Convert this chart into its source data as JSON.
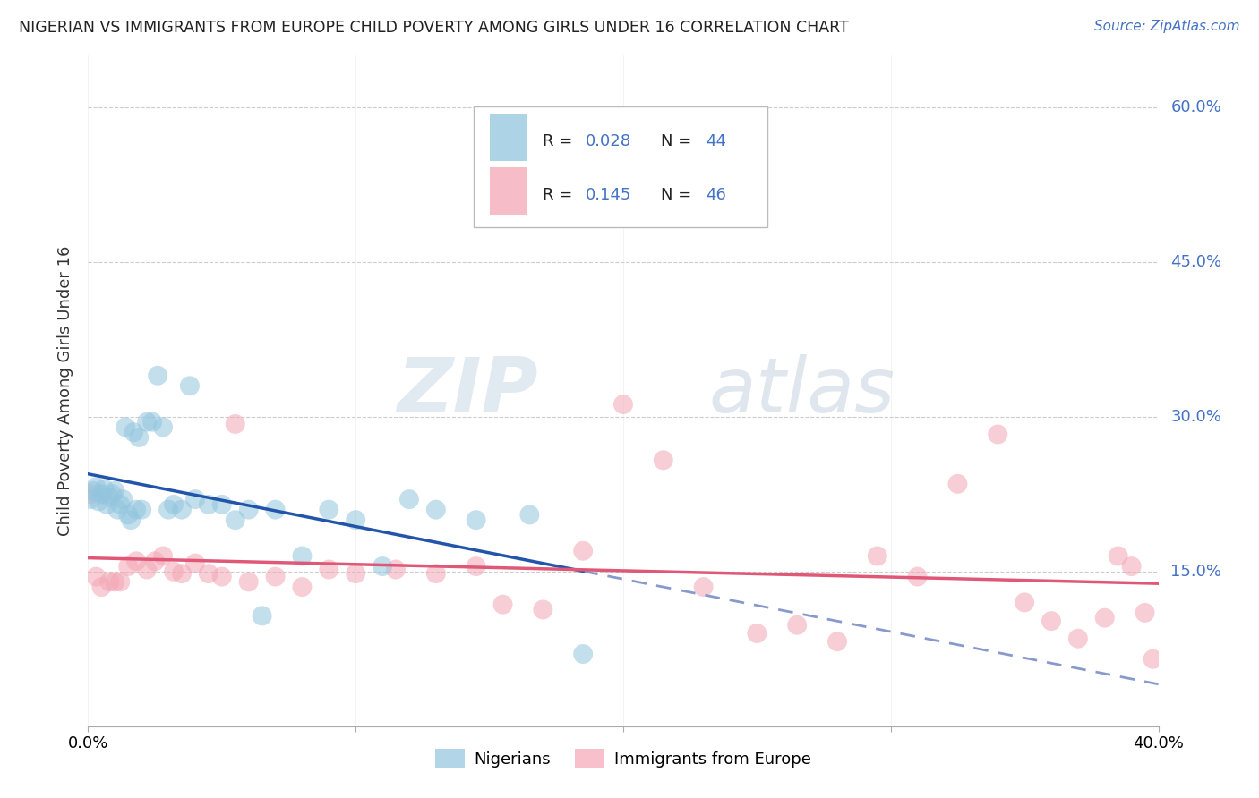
{
  "title": "NIGERIAN VS IMMIGRANTS FROM EUROPE CHILD POVERTY AMONG GIRLS UNDER 16 CORRELATION CHART",
  "source": "Source: ZipAtlas.com",
  "ylabel": "Child Poverty Among Girls Under 16",
  "ytick_labels": [
    "15.0%",
    "30.0%",
    "45.0%",
    "60.0%"
  ],
  "ytick_values": [
    0.15,
    0.3,
    0.45,
    0.6
  ],
  "xmin": 0.0,
  "xmax": 0.4,
  "ymin": 0.0,
  "ymax": 0.65,
  "blue_color": "#92c5de",
  "pink_color": "#f4a6b5",
  "line_blue": "#2255aa",
  "line_pink": "#e05878",
  "line_dashed_color": "#8899cc",
  "nigerians_x": [
    0.001,
    0.002,
    0.003,
    0.004,
    0.005,
    0.006,
    0.007,
    0.008,
    0.009,
    0.01,
    0.011,
    0.012,
    0.013,
    0.014,
    0.015,
    0.016,
    0.017,
    0.018,
    0.019,
    0.02,
    0.022,
    0.024,
    0.026,
    0.028,
    0.03,
    0.032,
    0.035,
    0.038,
    0.04,
    0.045,
    0.05,
    0.055,
    0.06,
    0.065,
    0.07,
    0.08,
    0.09,
    0.1,
    0.11,
    0.12,
    0.13,
    0.145,
    0.165,
    0.185
  ],
  "nigerians_y": [
    0.22,
    0.228,
    0.232,
    0.218,
    0.225,
    0.23,
    0.215,
    0.222,
    0.225,
    0.228,
    0.21,
    0.215,
    0.22,
    0.29,
    0.205,
    0.2,
    0.285,
    0.21,
    0.28,
    0.21,
    0.295,
    0.295,
    0.34,
    0.29,
    0.21,
    0.215,
    0.21,
    0.33,
    0.22,
    0.215,
    0.215,
    0.2,
    0.21,
    0.107,
    0.21,
    0.165,
    0.21,
    0.2,
    0.155,
    0.22,
    0.21,
    0.2,
    0.205,
    0.07
  ],
  "europe_x": [
    0.001,
    0.003,
    0.005,
    0.008,
    0.01,
    0.012,
    0.015,
    0.018,
    0.022,
    0.025,
    0.028,
    0.032,
    0.035,
    0.04,
    0.045,
    0.05,
    0.055,
    0.06,
    0.07,
    0.08,
    0.09,
    0.1,
    0.115,
    0.13,
    0.145,
    0.155,
    0.17,
    0.185,
    0.2,
    0.215,
    0.23,
    0.25,
    0.265,
    0.28,
    0.295,
    0.31,
    0.325,
    0.34,
    0.35,
    0.36,
    0.37,
    0.38,
    0.385,
    0.39,
    0.395,
    0.398
  ],
  "europe_y": [
    0.225,
    0.145,
    0.135,
    0.14,
    0.14,
    0.14,
    0.155,
    0.16,
    0.152,
    0.16,
    0.165,
    0.15,
    0.148,
    0.158,
    0.148,
    0.145,
    0.293,
    0.14,
    0.145,
    0.135,
    0.152,
    0.148,
    0.152,
    0.148,
    0.155,
    0.118,
    0.113,
    0.17,
    0.312,
    0.258,
    0.135,
    0.09,
    0.098,
    0.082,
    0.165,
    0.145,
    0.235,
    0.283,
    0.12,
    0.102,
    0.085,
    0.105,
    0.165,
    0.155,
    0.11,
    0.065
  ],
  "blue_line_x_end": 0.185,
  "watermark_text": "ZIPatlas",
  "watermark_zip_color": "#c8d8e8",
  "watermark_atlas_color": "#c8d0e0"
}
